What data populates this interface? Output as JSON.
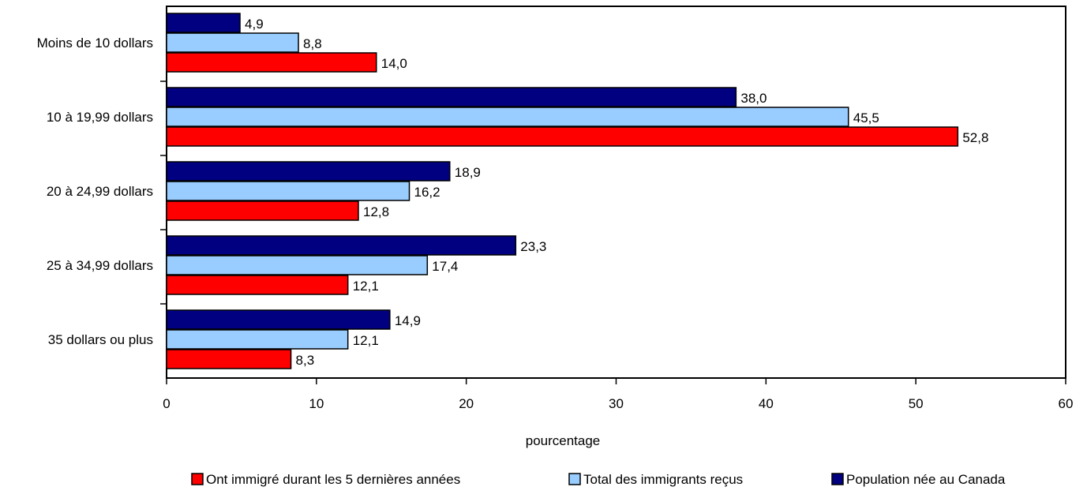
{
  "chart_data": {
    "type": "bar",
    "orientation": "horizontal",
    "title": "",
    "xlabel": "pourcentage",
    "ylabel": "",
    "xlim": [
      0,
      60
    ],
    "x_ticks": [
      0,
      10,
      20,
      30,
      40,
      50,
      60
    ],
    "grid": false,
    "legend_position": "bottom",
    "categories": [
      "Moins de 10 dollars",
      "10 à 19,99 dollars",
      "20 à 24,99 dollars",
      "25 à 34,99 dollars",
      "35 dollars ou plus"
    ],
    "series": [
      {
        "name": "Population née au Canada",
        "color": "#000080",
        "values": [
          4.9,
          38.0,
          18.9,
          23.3,
          14.9
        ],
        "labels": [
          "4,9",
          "38,0",
          "18,9",
          "23,3",
          "14,9"
        ]
      },
      {
        "name": "Total des immigrants reçus",
        "color": "#99CCFF",
        "values": [
          8.8,
          45.5,
          16.2,
          17.4,
          12.1
        ],
        "labels": [
          "8,8",
          "45,5",
          "16,2",
          "17,4",
          "12,1"
        ]
      },
      {
        "name": "Ont immigré durant les 5 dernières années",
        "color": "#FF0000",
        "values": [
          14.0,
          52.8,
          12.8,
          12.1,
          8.3
        ],
        "labels": [
          "14,0",
          "52,8",
          "12,8",
          "12,1",
          "8,3"
        ]
      }
    ],
    "legend_order": [
      2,
      1,
      0
    ]
  }
}
